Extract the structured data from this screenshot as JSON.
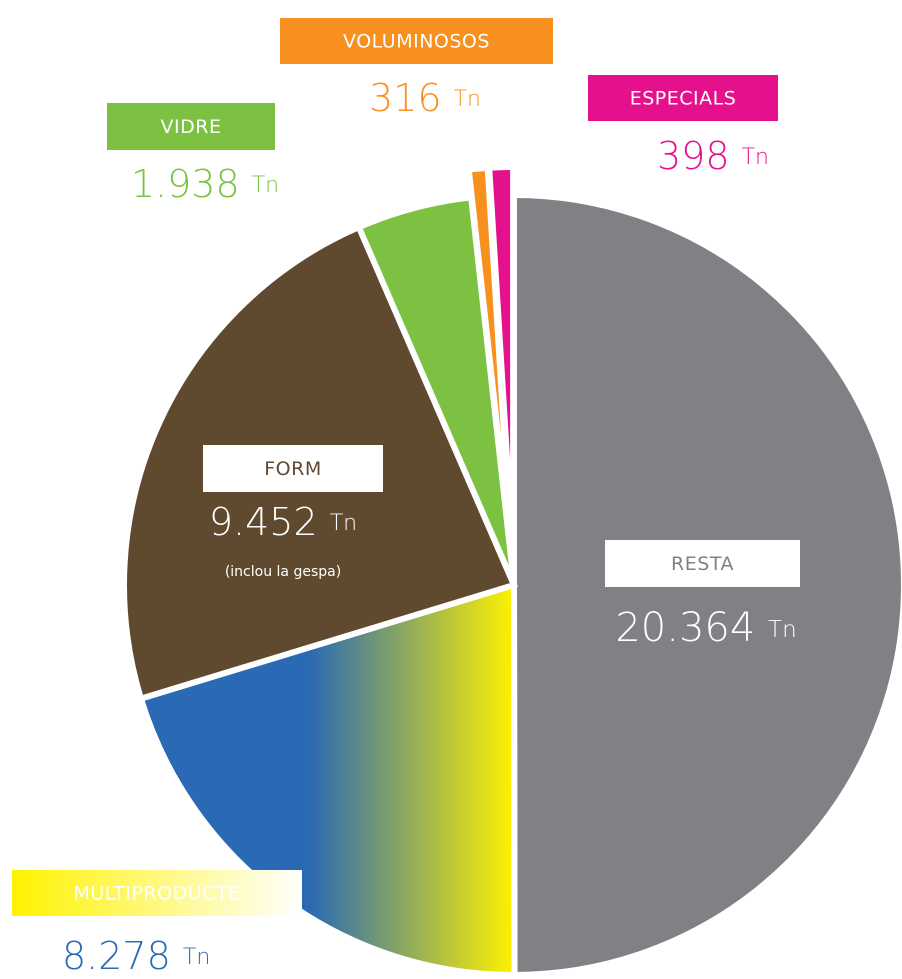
{
  "chart_data": {
    "type": "pie",
    "categories": [
      "RESTA",
      "MULTIPRODUCTE",
      "FORM",
      "VIDRE",
      "VOLUMINOSOS",
      "ESPECIALS"
    ],
    "values": [
      20364,
      8278,
      9452,
      1938,
      316,
      398
    ],
    "value_labels": [
      "20.364 Tn",
      "8.278 Tn",
      "9.452 Tn",
      "1.938 Tn",
      "316 Tn",
      "398 Tn"
    ],
    "colors": [
      "#808184",
      "#2a69b3",
      "#604a2f",
      "#7cc142",
      "#f7901e",
      "#e5118c"
    ],
    "gradient": {
      "category": "MULTIPRODUCTE",
      "from": "#2a69b3",
      "to": "#fff200"
    },
    "annotations": [
      {
        "category": "FORM",
        "text": "(inclou la gespa)"
      }
    ]
  }
}
